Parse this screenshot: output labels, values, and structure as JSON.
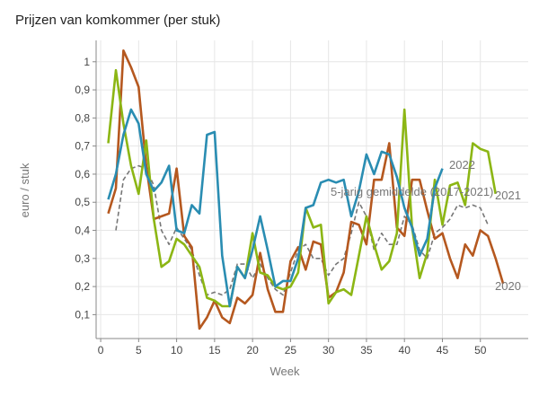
{
  "chart_data": {
    "type": "line",
    "title": "Prijzen van komkommer (per stuk)",
    "xlabel": "Week",
    "ylabel": "euro / stuk",
    "xlim": [
      -0.6,
      56.3
    ],
    "ylim": [
      0.015,
      1.076
    ],
    "xticks": [
      0,
      5,
      10,
      15,
      20,
      25,
      30,
      35,
      40,
      45,
      50
    ],
    "yticks": [
      0.1,
      0.2,
      0.3,
      0.4,
      0.5,
      0.6,
      0.7,
      0.8,
      0.9,
      1
    ],
    "ytick_labels": [
      "0,1",
      "0,2",
      "0,3",
      "0,4",
      "0,5",
      "0,6",
      "0,7",
      "0,8",
      "0,9",
      "1"
    ],
    "grid": true,
    "series": [
      {
        "name": "2020",
        "label": "2020",
        "color": "#b5581f",
        "dashed": false,
        "start_week": 1,
        "values": [
          0.46,
          0.55,
          1.04,
          0.98,
          0.91,
          0.63,
          0.44,
          0.45,
          0.46,
          0.62,
          0.38,
          0.34,
          0.05,
          0.09,
          0.15,
          0.09,
          0.07,
          0.16,
          0.14,
          0.17,
          0.32,
          0.19,
          0.11,
          0.11,
          0.29,
          0.34,
          0.26,
          0.36,
          0.35,
          0.16,
          0.18,
          0.25,
          0.43,
          0.42,
          0.35,
          0.58,
          0.58,
          0.71,
          0.41,
          0.38,
          0.58,
          0.58,
          0.47,
          0.37,
          0.39,
          0.3,
          0.23,
          0.35,
          0.31,
          0.4,
          0.38,
          0.3,
          0.21
        ]
      },
      {
        "name": "2021",
        "label": "2021",
        "color": "#8cb614",
        "dashed": false,
        "start_week": 1,
        "values": [
          0.71,
          0.97,
          0.78,
          0.63,
          0.53,
          0.72,
          0.44,
          0.27,
          0.29,
          0.37,
          0.35,
          0.31,
          0.27,
          0.16,
          0.15,
          0.13,
          0.13,
          0.27,
          0.23,
          0.39,
          0.25,
          0.24,
          0.2,
          0.19,
          0.2,
          0.25,
          0.48,
          0.41,
          0.42,
          0.14,
          0.18,
          0.19,
          0.17,
          0.31,
          0.45,
          0.35,
          0.26,
          0.29,
          0.39,
          0.83,
          0.41,
          0.23,
          0.32,
          0.58,
          0.42,
          0.56,
          0.57,
          0.49,
          0.71,
          0.69,
          0.68,
          0.53
        ]
      },
      {
        "name": "2022",
        "label": "2022",
        "color": "#2a8db2",
        "dashed": false,
        "start_week": 1,
        "values": [
          0.51,
          0.6,
          0.74,
          0.83,
          0.78,
          0.6,
          0.54,
          0.57,
          0.63,
          0.4,
          0.39,
          0.49,
          0.46,
          0.74,
          0.75,
          0.31,
          0.13,
          0.27,
          0.23,
          0.33,
          0.45,
          0.33,
          0.2,
          0.22,
          0.22,
          0.3,
          0.48,
          0.49,
          0.57,
          0.58,
          0.57,
          0.58,
          0.45,
          0.54,
          0.67,
          0.6,
          0.68,
          0.67,
          0.59,
          0.48,
          0.41,
          0.31,
          0.37,
          0.55,
          0.62
        ]
      },
      {
        "name": "5-jarig gemiddelde (2017-2021)",
        "label": "5-jarig gemiddelde (2017-2021)",
        "color": "#777777",
        "dashed": true,
        "start_week": 2,
        "values": [
          0.4,
          0.58,
          0.62,
          0.63,
          0.62,
          0.56,
          0.4,
          0.35,
          0.41,
          0.37,
          0.33,
          0.24,
          0.17,
          0.18,
          0.17,
          0.19,
          0.28,
          0.28,
          0.23,
          0.28,
          0.23,
          0.19,
          0.17,
          0.25,
          0.33,
          0.35,
          0.3,
          0.3,
          0.24,
          0.28,
          0.3,
          0.39,
          0.5,
          0.45,
          0.33,
          0.39,
          0.35,
          0.35,
          0.45,
          0.42,
          0.33,
          0.3,
          0.39,
          0.41,
          0.44,
          0.49,
          0.48,
          0.49,
          0.48,
          0.42
        ]
      }
    ]
  }
}
